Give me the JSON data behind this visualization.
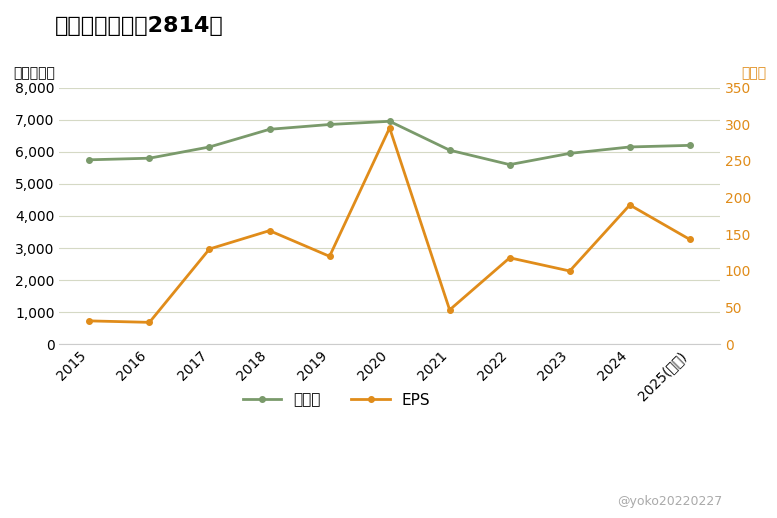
{
  "title": "佐藤食品工業（2814）",
  "years": [
    "2015",
    "2016",
    "2017",
    "2018",
    "2019",
    "2020",
    "2021",
    "2022",
    "2023",
    "2024",
    "2025(予想)"
  ],
  "uriage": [
    5750,
    5800,
    6150,
    6700,
    6850,
    6950,
    6050,
    5600,
    5950,
    6150,
    6200
  ],
  "eps": [
    32,
    30,
    130,
    155,
    120,
    295,
    47,
    118,
    100,
    190,
    143
  ],
  "uriage_color": "#7a9a6b",
  "eps_color": "#e08c1a",
  "left_ylim": [
    0,
    8000
  ],
  "right_ylim": [
    0,
    350
  ],
  "left_yticks": [
    0,
    1000,
    2000,
    3000,
    4000,
    5000,
    6000,
    7000,
    8000
  ],
  "right_yticks": [
    0,
    50,
    100,
    150,
    200,
    250,
    300,
    350
  ],
  "left_ylabel": "（百万円）",
  "right_ylabel": "（円）",
  "legend_labels": [
    "売上高",
    "EPS"
  ],
  "watermark": "@yoko20220227",
  "bg_color": "#ffffff",
  "grid_color": "#d5d9c5",
  "title_fontsize": 16,
  "axis_fontsize": 10,
  "legend_fontsize": 11
}
